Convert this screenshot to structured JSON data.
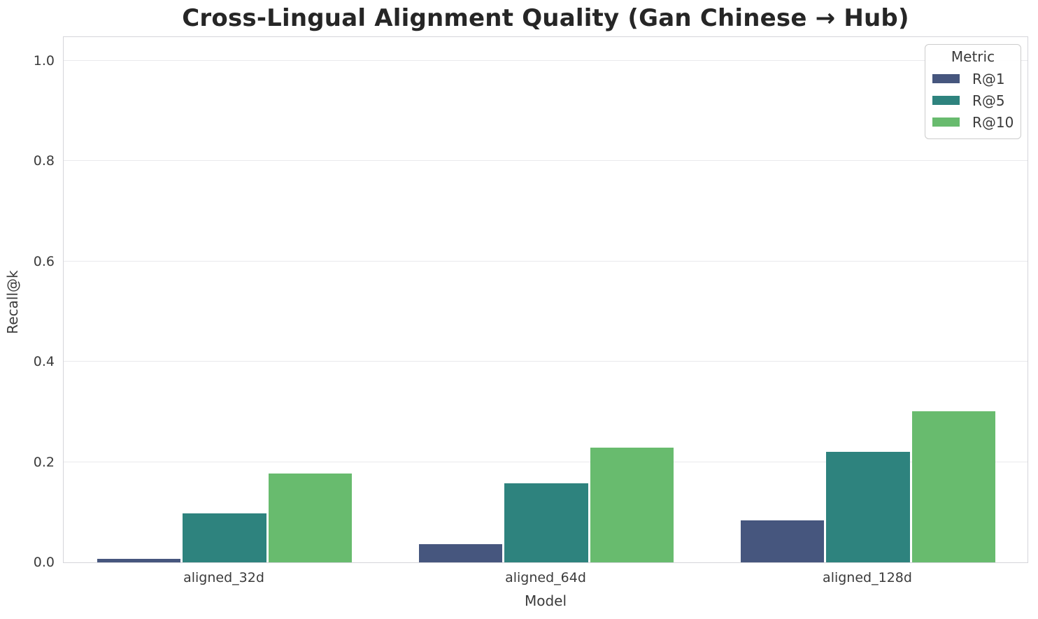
{
  "chart_data": {
    "type": "bar",
    "title": "Cross-Lingual Alignment Quality (Gan Chinese → Hub)",
    "xlabel": "Model",
    "ylabel": "Recall@k",
    "categories": [
      "aligned_32d",
      "aligned_64d",
      "aligned_128d"
    ],
    "series": [
      {
        "name": "R@1",
        "color": "#46567e",
        "values": [
          0.007,
          0.036,
          0.083
        ]
      },
      {
        "name": "R@5",
        "color": "#2e837e",
        "values": [
          0.098,
          0.158,
          0.221
        ]
      },
      {
        "name": "R@10",
        "color": "#68bb6e",
        "values": [
          0.177,
          0.229,
          0.301
        ]
      }
    ],
    "legend": {
      "title": "Metric",
      "position": "upper right"
    },
    "ylim": [
      0,
      1.05
    ],
    "yticks": [
      0.0,
      0.2,
      0.4,
      0.6,
      0.8,
      1.0
    ],
    "ytick_labels": [
      "0.0",
      "0.2",
      "0.4",
      "0.6",
      "0.8",
      "1.0"
    ],
    "grid": "horizontal"
  },
  "colors": {
    "background": "#ffffff",
    "gridline": "#e9e9ec",
    "spine": "#d5d5da",
    "text": "#3b3b3b",
    "title_text": "#262626",
    "legend_border": "#cccccc"
  }
}
